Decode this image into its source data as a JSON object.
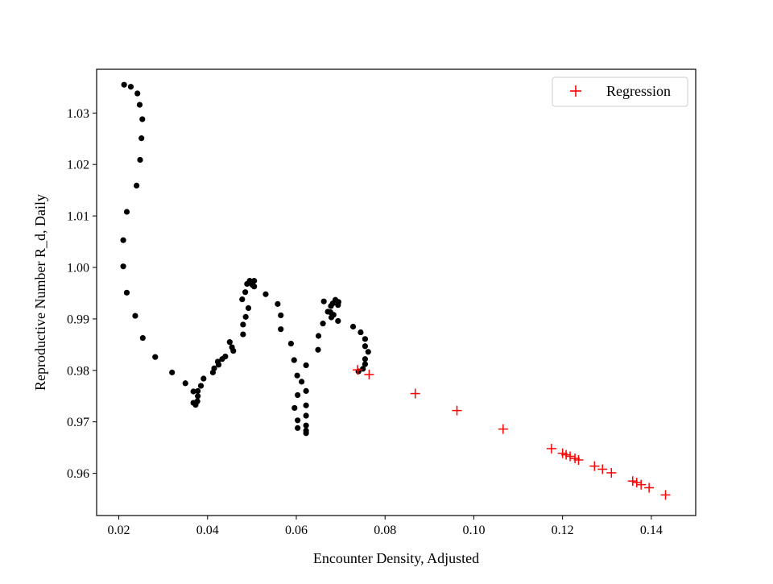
{
  "chart_data": {
    "type": "scatter",
    "xlabel": "Encounter Density, Adjusted",
    "ylabel": "Reproductive Number R_d, Daily",
    "xlim": [
      0.015,
      0.15
    ],
    "ylim": [
      0.9518,
      1.0385
    ],
    "grid": false,
    "legend_position": "top-right",
    "x_ticks": [
      0.02,
      0.04,
      0.06,
      0.08,
      0.1,
      0.12,
      0.14
    ],
    "x_tick_labels": [
      "0.02",
      "0.04",
      "0.06",
      "0.08",
      "0.10",
      "0.12",
      "0.14"
    ],
    "y_ticks": [
      0.96,
      0.97,
      0.98,
      0.99,
      1.0,
      1.01,
      1.02,
      1.03
    ],
    "y_tick_labels": [
      "0.96",
      "0.97",
      "0.98",
      "0.99",
      "1.00",
      "1.01",
      "1.02",
      "1.03"
    ],
    "series": [
      {
        "marker": "circle",
        "color": "#000000",
        "points": [
          [
            0.0212,
            1.0355
          ],
          [
            0.0227,
            1.0351
          ],
          [
            0.0242,
            1.0338
          ],
          [
            0.0247,
            1.0316
          ],
          [
            0.0253,
            1.0288
          ],
          [
            0.0251,
            1.0251
          ],
          [
            0.0248,
            1.0209
          ],
          [
            0.024,
            1.0159
          ],
          [
            0.0218,
            1.0108
          ],
          [
            0.021,
            1.0053
          ],
          [
            0.021,
            1.0002
          ],
          [
            0.0218,
            0.9951
          ],
          [
            0.0237,
            0.9906
          ],
          [
            0.0254,
            0.9863
          ],
          [
            0.0282,
            0.9826
          ],
          [
            0.032,
            0.9796
          ],
          [
            0.035,
            0.9775
          ],
          [
            0.0368,
            0.9759
          ],
          [
            0.0378,
            0.976
          ],
          [
            0.0368,
            0.9737
          ],
          [
            0.0373,
            0.9733
          ],
          [
            0.0377,
            0.974
          ],
          [
            0.0378,
            0.975
          ],
          [
            0.0385,
            0.977
          ],
          [
            0.0391,
            0.9784
          ],
          [
            0.0412,
            0.9796
          ],
          [
            0.0415,
            0.9804
          ],
          [
            0.0425,
            0.9811
          ],
          [
            0.0423,
            0.9817
          ],
          [
            0.0433,
            0.9822
          ],
          [
            0.044,
            0.9827
          ],
          [
            0.045,
            0.9855
          ],
          [
            0.0455,
            0.9845
          ],
          [
            0.0458,
            0.9838
          ],
          [
            0.048,
            0.987
          ],
          [
            0.048,
            0.9889
          ],
          [
            0.0486,
            0.9904
          ],
          [
            0.0492,
            0.9921
          ],
          [
            0.0478,
            0.9938
          ],
          [
            0.0485,
            0.9952
          ],
          [
            0.0489,
            0.9968
          ],
          [
            0.0495,
            0.9974
          ],
          [
            0.0501,
            0.9966
          ],
          [
            0.0505,
            0.9974
          ],
          [
            0.0505,
            0.9963
          ],
          [
            0.0531,
            0.9948
          ],
          [
            0.0558,
            0.9929
          ],
          [
            0.0565,
            0.9907
          ],
          [
            0.0565,
            0.988
          ],
          [
            0.0588,
            0.9852
          ],
          [
            0.0595,
            0.982
          ],
          [
            0.0602,
            0.979
          ],
          [
            0.0612,
            0.9778
          ],
          [
            0.0622,
            0.981
          ],
          [
            0.0622,
            0.976
          ],
          [
            0.0622,
            0.9732
          ],
          [
            0.0622,
            0.9712
          ],
          [
            0.0622,
            0.9693
          ],
          [
            0.0622,
            0.9683
          ],
          [
            0.0622,
            0.9678
          ],
          [
            0.0603,
            0.9703
          ],
          [
            0.0603,
            0.9688
          ],
          [
            0.0603,
            0.9752
          ],
          [
            0.0596,
            0.9727
          ],
          [
            0.0649,
            0.984
          ],
          [
            0.065,
            0.9867
          ],
          [
            0.066,
            0.9891
          ],
          [
            0.0662,
            0.9934
          ],
          [
            0.0671,
            0.9914
          ],
          [
            0.0677,
            0.9913
          ],
          [
            0.0678,
            0.9925
          ],
          [
            0.0679,
            0.9903
          ],
          [
            0.0682,
            0.993
          ],
          [
            0.0684,
            0.9908
          ],
          [
            0.0688,
            0.9937
          ],
          [
            0.0695,
            0.9933
          ],
          [
            0.0694,
            0.9927
          ],
          [
            0.0694,
            0.9896
          ],
          [
            0.0728,
            0.9885
          ],
          [
            0.0745,
            0.9874
          ],
          [
            0.0755,
            0.9861
          ],
          [
            0.0755,
            0.9847
          ],
          [
            0.0762,
            0.9836
          ],
          [
            0.0755,
            0.9822
          ],
          [
            0.0755,
            0.9812
          ],
          [
            0.075,
            0.9803
          ],
          [
            0.074,
            0.9798
          ]
        ]
      },
      {
        "name": "Regression",
        "marker": "plus",
        "color": "#ff0000",
        "points": [
          [
            0.0738,
            0.9801
          ],
          [
            0.0764,
            0.9792
          ],
          [
            0.0868,
            0.9755
          ],
          [
            0.0962,
            0.9722
          ],
          [
            0.1066,
            0.9686
          ],
          [
            0.1175,
            0.9648
          ],
          [
            0.12,
            0.9639
          ],
          [
            0.1208,
            0.9636
          ],
          [
            0.1217,
            0.9633
          ],
          [
            0.1228,
            0.9629
          ],
          [
            0.1236,
            0.9626
          ],
          [
            0.1272,
            0.9614
          ],
          [
            0.129,
            0.9608
          ],
          [
            0.131,
            0.9601
          ],
          [
            0.1358,
            0.9585
          ],
          [
            0.1367,
            0.9582
          ],
          [
            0.1377,
            0.9578
          ],
          [
            0.1395,
            0.9572
          ],
          [
            0.1432,
            0.9558
          ]
        ]
      }
    ]
  }
}
